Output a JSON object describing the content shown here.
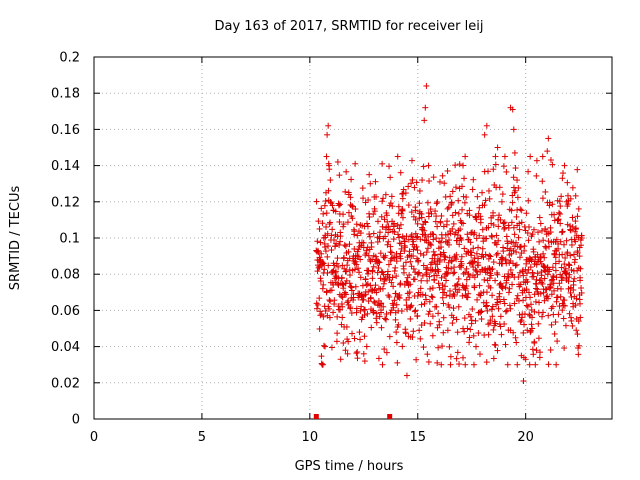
{
  "chart_data": {
    "type": "scatter",
    "title": "Day 163 of 2017, SRMTID for receiver leij",
    "xlabel": "GPS time / hours",
    "ylabel": "SRMTID / TECUs",
    "xlim": [
      0,
      24
    ],
    "ylim": [
      0,
      0.2
    ],
    "xticks": [
      0,
      5,
      10,
      15,
      20
    ],
    "xtick_labels": [
      "0",
      "5",
      "10",
      "15",
      "20"
    ],
    "yticks": [
      0,
      0.02,
      0.04,
      0.06,
      0.08,
      0.1,
      0.12,
      0.14,
      0.16,
      0.18,
      0.2
    ],
    "ytick_labels": [
      "0",
      "0.02",
      "0.04",
      "0.06",
      "0.08",
      "0.1",
      "0.12",
      "0.14",
      "0.16",
      "0.18",
      "0.2"
    ],
    "grid": true,
    "marker": "+",
    "color": "#e00000",
    "data_range_hours": [
      10.3,
      22.6
    ],
    "zero_value_x": [
      10.3,
      13.7
    ],
    "series": [
      {
        "name": "SRMTID",
        "points": [
          [
            10.45,
            0.105
          ],
          [
            10.5,
            0.088
          ],
          [
            10.55,
            0.058
          ],
          [
            10.6,
            0.072
          ],
          [
            10.65,
            0.1
          ],
          [
            10.7,
            0.095
          ],
          [
            10.75,
            0.125
          ],
          [
            10.8,
            0.157
          ],
          [
            10.85,
            0.162
          ],
          [
            10.9,
            0.138
          ],
          [
            10.95,
            0.132
          ],
          [
            11.05,
            0.118
          ],
          [
            11.1,
            0.082
          ],
          [
            11.2,
            0.079
          ],
          [
            11.3,
            0.142
          ],
          [
            11.35,
            0.118
          ],
          [
            11.4,
            0.098
          ],
          [
            11.5,
            0.062
          ],
          [
            11.55,
            0.042
          ],
          [
            11.65,
            0.038
          ],
          [
            11.75,
            0.036
          ],
          [
            11.85,
            0.075
          ],
          [
            11.95,
            0.071
          ],
          [
            12.05,
            0.102
          ],
          [
            12.1,
            0.141
          ],
          [
            12.2,
            0.09
          ],
          [
            12.3,
            0.048
          ],
          [
            12.4,
            0.055
          ],
          [
            12.5,
            0.036
          ],
          [
            12.55,
            0.032
          ],
          [
            12.65,
            0.108
          ],
          [
            12.7,
            0.121
          ],
          [
            12.75,
            0.135
          ],
          [
            12.8,
            0.13
          ],
          [
            12.9,
            0.082
          ],
          [
            13.0,
            0.071
          ],
          [
            13.1,
            0.088
          ],
          [
            13.2,
            0.072
          ],
          [
            13.3,
            0.064
          ],
          [
            13.4,
            0.062
          ],
          [
            13.55,
            0.058
          ],
          [
            13.7,
            0.118
          ],
          [
            13.8,
            0.123
          ],
          [
            13.9,
            0.108
          ],
          [
            14.0,
            0.048
          ],
          [
            14.1,
            0.052
          ],
          [
            14.2,
            0.075
          ],
          [
            14.3,
            0.115
          ],
          [
            14.4,
            0.098
          ],
          [
            14.5,
            0.024
          ],
          [
            14.6,
            0.067
          ],
          [
            14.7,
            0.09
          ],
          [
            14.8,
            0.098
          ],
          [
            14.9,
            0.11
          ],
          [
            15.0,
            0.08
          ],
          [
            15.1,
            0.126
          ],
          [
            15.2,
            0.132
          ],
          [
            15.3,
            0.165
          ],
          [
            15.35,
            0.172
          ],
          [
            15.4,
            0.184
          ],
          [
            15.5,
            0.14
          ],
          [
            15.6,
            0.102
          ],
          [
            15.7,
            0.046
          ],
          [
            15.8,
            0.062
          ],
          [
            15.9,
            0.031
          ],
          [
            16.0,
            0.052
          ],
          [
            16.1,
            0.078
          ],
          [
            16.2,
            0.092
          ],
          [
            16.3,
            0.098
          ],
          [
            16.4,
            0.102
          ],
          [
            16.5,
            0.123
          ],
          [
            16.6,
            0.105
          ],
          [
            16.7,
            0.068
          ],
          [
            16.8,
            0.055
          ],
          [
            16.9,
            0.062
          ],
          [
            17.0,
            0.087
          ],
          [
            17.1,
            0.108
          ],
          [
            17.2,
            0.03
          ],
          [
            17.3,
            0.05
          ],
          [
            17.4,
            0.045
          ],
          [
            17.5,
            0.092
          ],
          [
            17.6,
            0.102
          ],
          [
            17.7,
            0.04
          ],
          [
            17.8,
            0.085
          ],
          [
            17.9,
            0.112
          ],
          [
            18.0,
            0.118
          ],
          [
            18.1,
            0.157
          ],
          [
            18.2,
            0.162
          ],
          [
            18.3,
            0.126
          ],
          [
            18.4,
            0.108
          ],
          [
            18.5,
            0.138
          ],
          [
            18.6,
            0.145
          ],
          [
            18.7,
            0.15
          ],
          [
            18.8,
            0.128
          ],
          [
            18.9,
            0.12
          ],
          [
            19.0,
            0.105
          ],
          [
            19.1,
            0.086
          ],
          [
            19.2,
            0.078
          ],
          [
            19.3,
            0.172
          ],
          [
            19.4,
            0.171
          ],
          [
            19.45,
            0.16
          ],
          [
            19.5,
            0.147
          ],
          [
            19.6,
            0.132
          ],
          [
            19.7,
            0.108
          ],
          [
            19.8,
            0.035
          ],
          [
            19.9,
            0.021
          ],
          [
            20.0,
            0.033
          ],
          [
            20.1,
            0.062
          ],
          [
            20.2,
            0.057
          ],
          [
            20.3,
            0.05
          ],
          [
            20.4,
            0.042
          ],
          [
            20.5,
            0.038
          ],
          [
            20.6,
            0.088
          ],
          [
            20.7,
            0.108
          ],
          [
            20.8,
            0.122
          ],
          [
            20.9,
            0.105
          ],
          [
            21.0,
            0.148
          ],
          [
            21.05,
            0.155
          ],
          [
            21.1,
            0.118
          ],
          [
            21.2,
            0.052
          ],
          [
            21.3,
            0.075
          ],
          [
            21.4,
            0.082
          ],
          [
            21.5,
            0.094
          ],
          [
            21.6,
            0.108
          ],
          [
            21.7,
            0.133
          ],
          [
            21.8,
            0.14
          ],
          [
            21.9,
            0.12
          ],
          [
            22.0,
            0.085
          ],
          [
            22.1,
            0.056
          ],
          [
            22.2,
            0.062
          ],
          [
            22.3,
            0.098
          ],
          [
            22.4,
            0.112
          ],
          [
            22.5,
            0.09
          ],
          [
            22.6,
            0.1
          ]
        ]
      }
    ]
  }
}
